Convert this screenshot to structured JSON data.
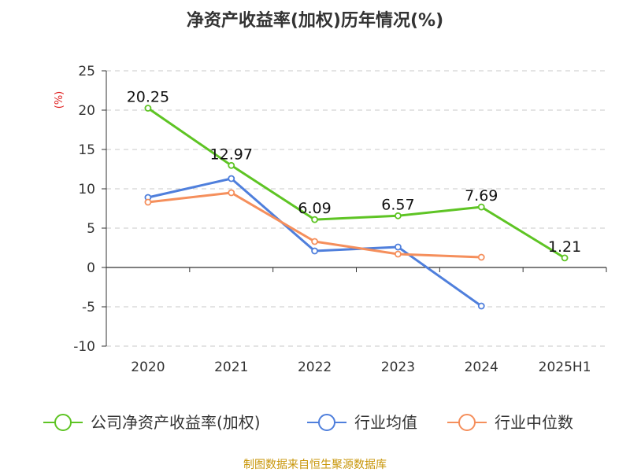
{
  "chart_data": {
    "type": "line",
    "title": "净资产收益率(加权)历年情况(%)",
    "ylabel": "(%)",
    "xlabel": "",
    "categories": [
      "2020",
      "2021",
      "2022",
      "2023",
      "2024",
      "2025H1"
    ],
    "ylim": [
      -10,
      25
    ],
    "yticks": [
      25,
      20,
      15,
      10,
      5,
      0,
      -5,
      -10
    ],
    "grid": true,
    "legend_position": "bottom",
    "series": [
      {
        "name": "公司净资产收益率(加权)",
        "color": "#5ec424",
        "values": [
          20.25,
          12.97,
          6.09,
          6.57,
          7.69,
          1.21
        ],
        "labels": [
          "20.25",
          "12.97",
          "6.09",
          "6.57",
          "7.69",
          "1.21"
        ]
      },
      {
        "name": "行业均值",
        "color": "#4f7fdc",
        "values": [
          8.9,
          11.3,
          2.1,
          2.6,
          -4.9,
          null
        ]
      },
      {
        "name": "行业中位数",
        "color": "#f58f5c",
        "values": [
          8.3,
          9.5,
          3.3,
          1.7,
          1.3,
          null
        ]
      }
    ],
    "source": "制图数据来自恒生聚源数据库"
  }
}
